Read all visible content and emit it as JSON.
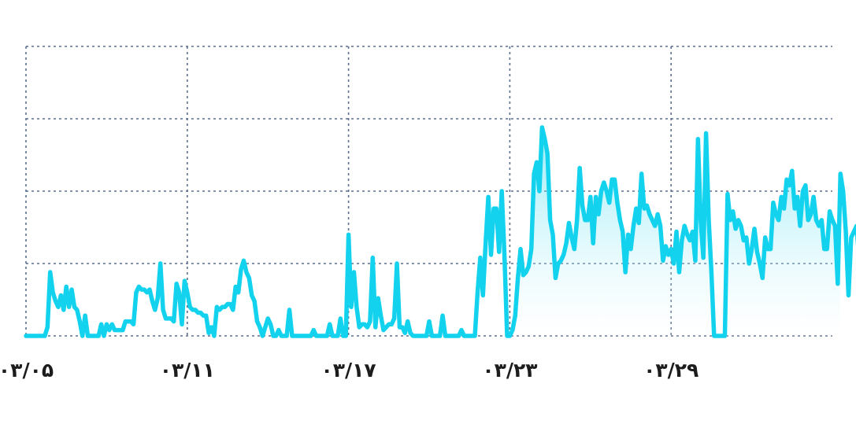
{
  "chart_data": {
    "type": "area",
    "title": "",
    "xlabel": "",
    "ylabel": "",
    "grid": true,
    "legend": "none",
    "x_tick_labels": [
      "۰۳/۰۵",
      "۰۳/۱۱",
      "۰۳/۱۷",
      "۰۳/۲۳",
      "۰۳/۲۹"
    ],
    "x_tick_index": [
      0,
      60,
      120,
      180,
      240
    ],
    "xlim": [
      0,
      300
    ],
    "ylim": [
      0,
      100
    ],
    "y_gridlines": [
      0,
      25,
      50,
      75,
      100
    ],
    "colors": {
      "line": "#12d2ee",
      "fill_top": "#12d2ee",
      "fill_bottom": "#ffffff",
      "grid": "#5d6f8f",
      "text": "#1c1c1c"
    },
    "series": [
      {
        "values": [
          0,
          0,
          0,
          0,
          0,
          0,
          0,
          0,
          3,
          22,
          15,
          12,
          10,
          14,
          9,
          17,
          10,
          16,
          10,
          9,
          5,
          0,
          7,
          0,
          0,
          0,
          0,
          0,
          4,
          0,
          4,
          2,
          4,
          2,
          2,
          2,
          2,
          5,
          5,
          5,
          4,
          15,
          17,
          16,
          16,
          15,
          16,
          12,
          9,
          13,
          25,
          9,
          6,
          6,
          6,
          5,
          18,
          15,
          4,
          19,
          15,
          10,
          9,
          9,
          8,
          8,
          7,
          7,
          1,
          3,
          0,
          10,
          9,
          10,
          10,
          11,
          11,
          9,
          17,
          15,
          23,
          26,
          22,
          20,
          14,
          12,
          5,
          3,
          0,
          3,
          6,
          4,
          0,
          0,
          2,
          0,
          0,
          0,
          9,
          0,
          0,
          0,
          0,
          0,
          0,
          0,
          0,
          2,
          0,
          0,
          0,
          0,
          0,
          4,
          0,
          0,
          0,
          6,
          0,
          0,
          35,
          10,
          22,
          10,
          3,
          4,
          4,
          3,
          5,
          27,
          3,
          13,
          7,
          2,
          3,
          4,
          4,
          6,
          25,
          3,
          3,
          1,
          5,
          1,
          0,
          0,
          0,
          0,
          0,
          0,
          5,
          0,
          0,
          0,
          0,
          7,
          0,
          0,
          0,
          0,
          0,
          0,
          2,
          0,
          0,
          0,
          0,
          0,
          15,
          27,
          14,
          32,
          48,
          28,
          44,
          44,
          29,
          50,
          28,
          0,
          0,
          2,
          7,
          20,
          30,
          21,
          22,
          24,
          30,
          56,
          60,
          50,
          72,
          68,
          63,
          40,
          35,
          20,
          25,
          26,
          28,
          32,
          39,
          34,
          30,
          40,
          58,
          45,
          40,
          40,
          48,
          32,
          48,
          42,
          50,
          53,
          50,
          46,
          54,
          54,
          46,
          40,
          36,
          22,
          35,
          30,
          38,
          44,
          39,
          56,
          44,
          45,
          42,
          40,
          38,
          42,
          38,
          26,
          31,
          28,
          30,
          25,
          36,
          22,
          33,
          38,
          35,
          33,
          36,
          26,
          68,
          40,
          27,
          70,
          40,
          22,
          0,
          0,
          0,
          0,
          0,
          49,
          40,
          43,
          37,
          40,
          38,
          33,
          34,
          25,
          30,
          37,
          29,
          25,
          20,
          34,
          30,
          30,
          46,
          42,
          40,
          48,
          44,
          54,
          52,
          57,
          44,
          48,
          38,
          50,
          52,
          40,
          42,
          48,
          40,
          38,
          40,
          30,
          30,
          43,
          40,
          38,
          18,
          56,
          50,
          36,
          14,
          34,
          36,
          38,
          26,
          40
        ]
      }
    ]
  }
}
